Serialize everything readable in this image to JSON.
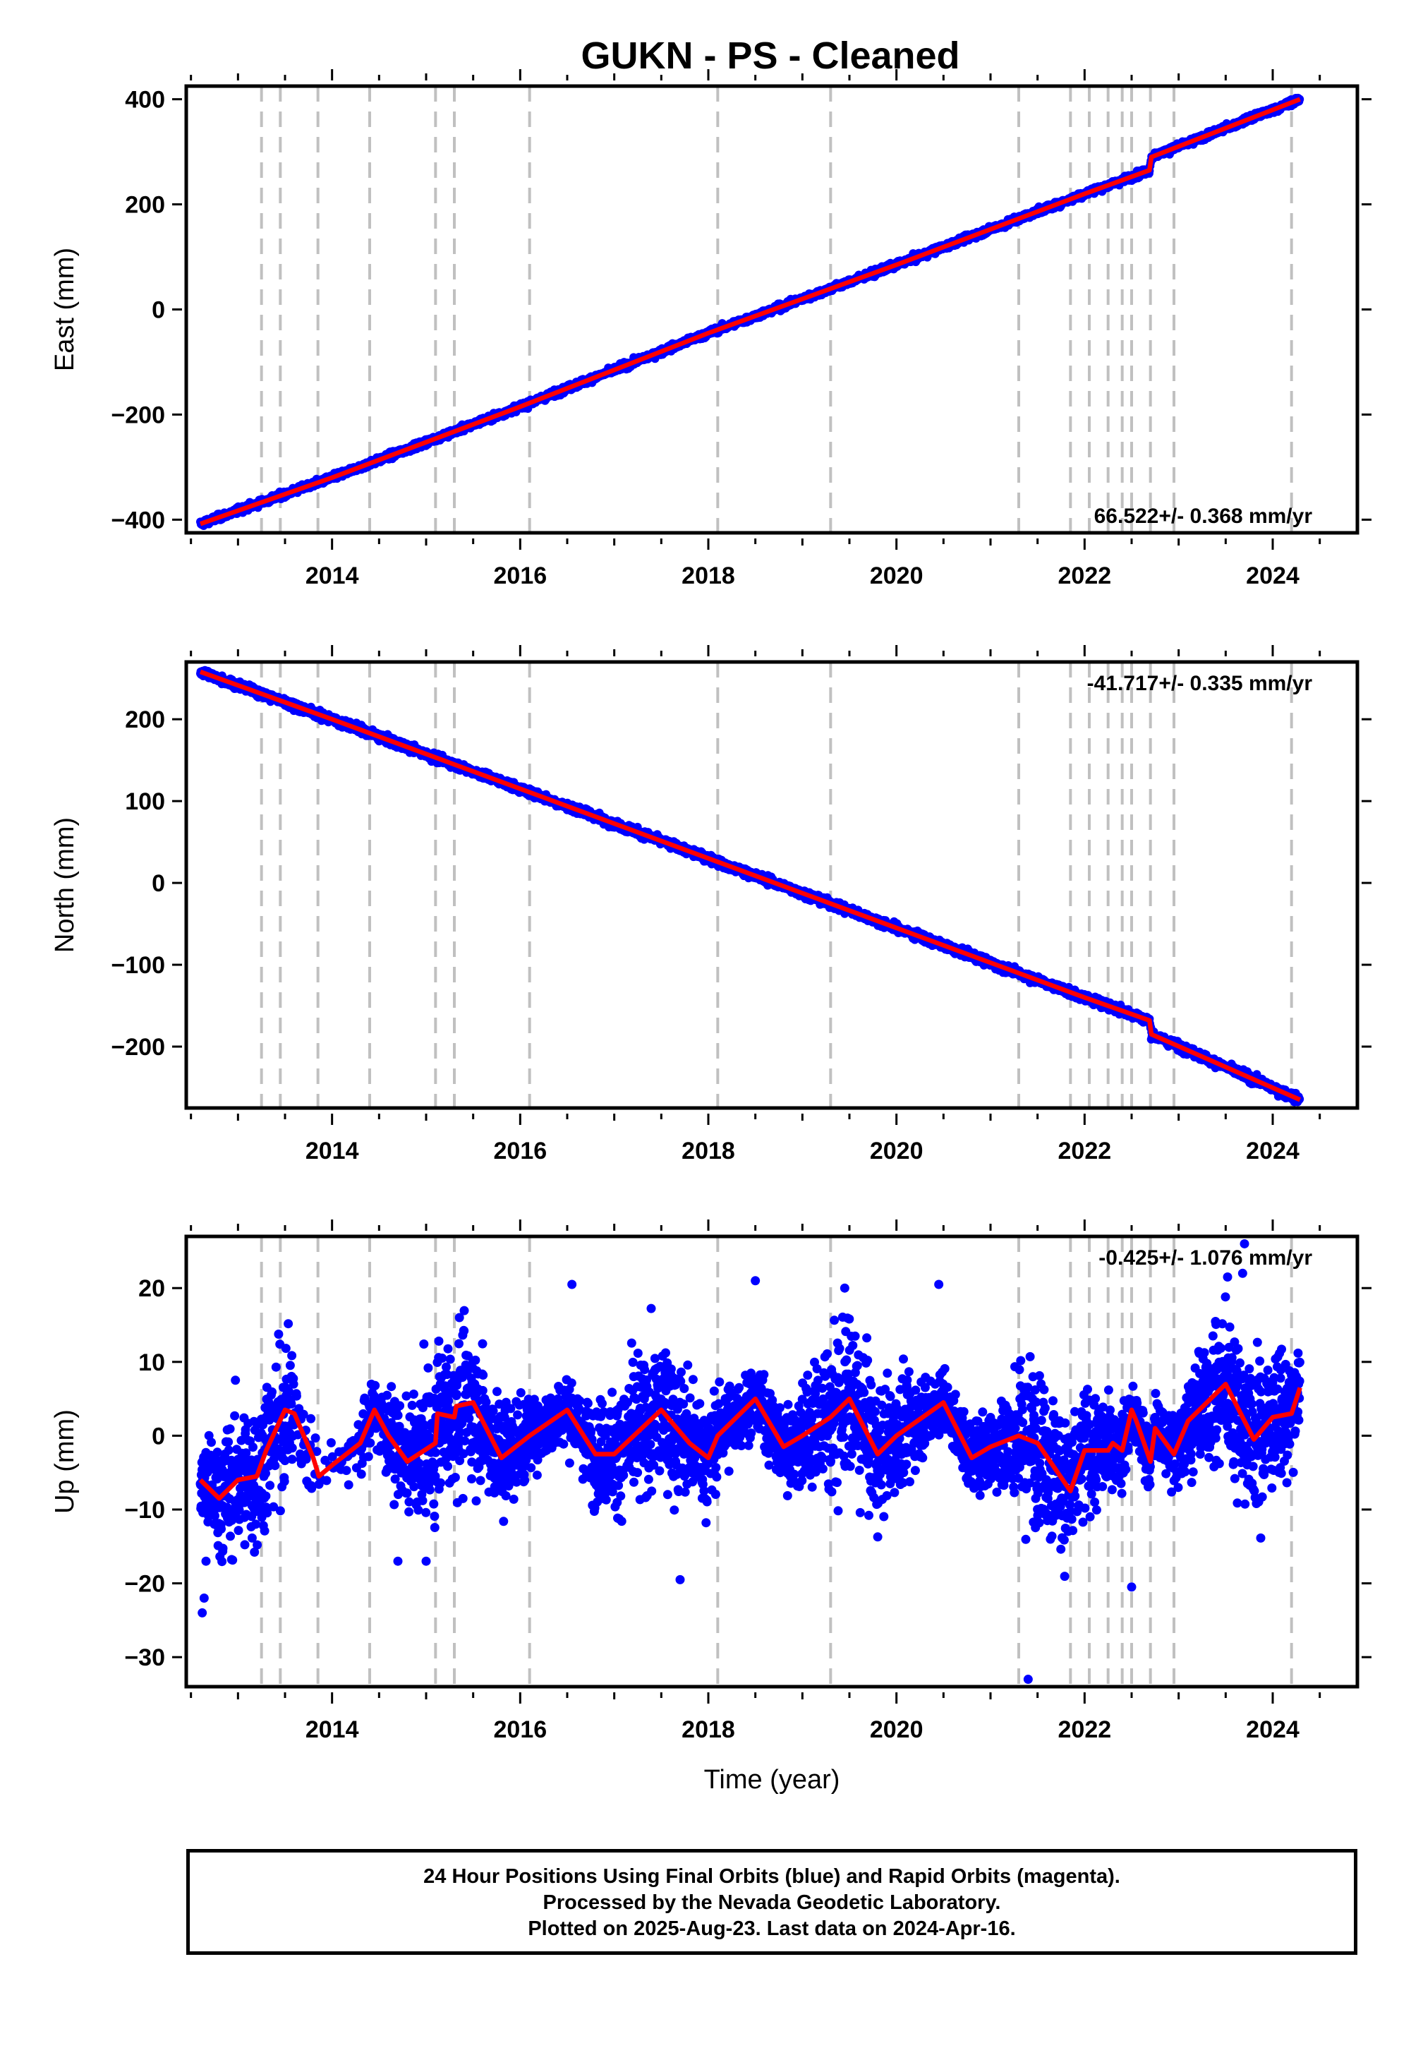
{
  "title": "GUKN  - PS - Cleaned",
  "footer": {
    "line1": "24 Hour Positions Using Final Orbits (blue) and Rapid Orbits (magenta).",
    "line2": "Processed by the Nevada Geodetic Laboratory.",
    "line3": "Plotted on 2025-Aug-23. Last data on 2024-Apr-16."
  },
  "colors": {
    "data": "#0000ff",
    "model": "#ff0000",
    "breaks": "#c0c0c0",
    "frame": "#000000"
  },
  "chart_data": [
    {
      "type": "scatter",
      "ylabel": "East (mm)",
      "xlabel": "",
      "xlim": [
        2012.45,
        2024.9
      ],
      "ylim": [
        -425,
        425
      ],
      "x_ticks": [
        2014,
        2016,
        2018,
        2020,
        2022,
        2024
      ],
      "y_ticks": [
        -400,
        -200,
        0,
        200,
        400
      ],
      "y_tick_labels": [
        "−400",
        "−200",
        "0",
        "200",
        "400"
      ],
      "rate": "66.522+/- 0.368 mm/yr",
      "rate_position": "bottom-right",
      "break_lines": [
        2013.25,
        2013.45,
        2013.85,
        2014.4,
        2015.1,
        2015.3,
        2016.1,
        2018.1,
        2019.3,
        2021.3,
        2021.85,
        2022.05,
        2022.25,
        2022.4,
        2022.5,
        2022.7,
        2022.95,
        2024.2
      ],
      "series": [
        {
          "kind": "points",
          "x_start": 2012.6,
          "x_end": 2024.29,
          "y_at_start": -408,
          "y_at_end": 410,
          "offsets": [
            {
              "x": 2022.7,
              "y": 12
            }
          ],
          "scatter": 3
        },
        {
          "kind": "model",
          "x": [
            2012.6,
            2014.0,
            2016.0,
            2018.0,
            2020.0,
            2022.0,
            2022.69,
            2022.71,
            2024.29
          ],
          "y": [
            -408,
            -320,
            -185,
            -45,
            85,
            220,
            265,
            290,
            400
          ]
        }
      ]
    },
    {
      "type": "scatter",
      "ylabel": "North (mm)",
      "xlabel": "",
      "xlim": [
        2012.45,
        2024.9
      ],
      "ylim": [
        -275,
        270
      ],
      "x_ticks": [
        2014,
        2016,
        2018,
        2020,
        2022,
        2024
      ],
      "y_ticks": [
        -200,
        -100,
        0,
        100,
        200
      ],
      "y_tick_labels": [
        "−200",
        "−100",
        "0",
        "100",
        "200"
      ],
      "rate": "-41.717+/- 0.335 mm/yr",
      "rate_position": "top-right",
      "break_lines": [
        2013.25,
        2013.45,
        2013.85,
        2014.4,
        2015.1,
        2015.3,
        2016.1,
        2018.1,
        2019.3,
        2021.3,
        2021.85,
        2022.05,
        2022.25,
        2022.4,
        2022.5,
        2022.7,
        2022.95,
        2024.2
      ],
      "series": [
        {
          "kind": "points",
          "x_start": 2012.6,
          "x_end": 2024.29,
          "y_at_start": 258,
          "y_at_end": -265,
          "scatter": 2.5
        },
        {
          "kind": "model",
          "x": [
            2012.6,
            2014.0,
            2016.0,
            2018.0,
            2020.0,
            2022.0,
            2022.69,
            2022.71,
            2024.29
          ],
          "y": [
            258,
            200,
            115,
            30,
            -55,
            -140,
            -168,
            -185,
            -265
          ]
        }
      ]
    },
    {
      "type": "scatter",
      "ylabel": "Up (mm)",
      "xlabel": "Time (year)",
      "xlim": [
        2012.45,
        2024.9
      ],
      "ylim": [
        -34,
        27
      ],
      "x_ticks": [
        2014,
        2016,
        2018,
        2020,
        2022,
        2024
      ],
      "y_ticks": [
        -30,
        -20,
        -10,
        0,
        10,
        20
      ],
      "y_tick_labels": [
        "−30",
        "−20",
        "−10",
        "0",
        "10",
        "20"
      ],
      "rate": "-0.425+/- 1.076 mm/yr",
      "rate_position": "top-right",
      "break_lines": [
        2013.25,
        2013.45,
        2013.85,
        2014.4,
        2015.1,
        2015.3,
        2016.1,
        2018.1,
        2019.3,
        2021.3,
        2021.85,
        2022.05,
        2022.25,
        2022.4,
        2022.5,
        2022.7,
        2022.95,
        2024.2
      ],
      "outliers": [
        {
          "x": 2012.62,
          "y": -24
        },
        {
          "x": 2012.64,
          "y": -22
        },
        {
          "x": 2012.66,
          "y": -17
        },
        {
          "x": 2017.7,
          "y": -19.5
        },
        {
          "x": 2021.4,
          "y": -33
        },
        {
          "x": 2022.5,
          "y": -20.5
        },
        {
          "x": 2023.7,
          "y": 26
        },
        {
          "x": 2023.68,
          "y": 22
        },
        {
          "x": 2018.5,
          "y": 21
        },
        {
          "x": 2016.55,
          "y": 20.5
        },
        {
          "x": 2019.45,
          "y": 20
        },
        {
          "x": 2020.45,
          "y": 20.5
        },
        {
          "x": 2023.52,
          "y": 21.5
        },
        {
          "x": 2014.7,
          "y": -17
        },
        {
          "x": 2015.0,
          "y": -17
        }
      ],
      "series": [
        {
          "kind": "points",
          "x_start": 2012.6,
          "x_end": 2024.29,
          "noise": 5,
          "gaps": [
            [
              2013.6,
              2014.3
            ]
          ]
        },
        {
          "kind": "model",
          "x": [
            2012.6,
            2012.8,
            2013.0,
            2013.2,
            2013.3,
            2013.5,
            2013.6,
            2013.8,
            2013.86,
            2014.0,
            2014.3,
            2014.45,
            2014.6,
            2014.8,
            2015.1,
            2015.12,
            2015.3,
            2015.32,
            2015.5,
            2015.8,
            2016.0,
            2016.1,
            2016.5,
            2016.8,
            2017.0,
            2017.5,
            2017.8,
            2018.0,
            2018.1,
            2018.5,
            2018.8,
            2019.0,
            2019.3,
            2019.5,
            2019.8,
            2020.0,
            2020.5,
            2020.8,
            2021.0,
            2021.3,
            2021.5,
            2021.85,
            2022.0,
            2022.25,
            2022.3,
            2022.4,
            2022.5,
            2022.55,
            2022.7,
            2022.75,
            2022.95,
            2023.1,
            2023.5,
            2023.8,
            2024.0,
            2024.2,
            2024.29
          ],
          "y": [
            -6,
            -8.5,
            -6,
            -5.5,
            -2,
            3.5,
            3,
            -3,
            -5.5,
            -4,
            -1,
            3.5,
            0,
            -3.5,
            -1,
            3,
            2.5,
            4,
            4.5,
            -3,
            -1,
            0,
            3.5,
            -2.5,
            -2.5,
            3.5,
            -1,
            -3,
            0,
            5,
            -1.5,
            0,
            2.5,
            5,
            -2.5,
            0,
            4.5,
            -3,
            -1.5,
            0,
            -1,
            -7.5,
            -2,
            -2,
            -1,
            -2,
            3.5,
            2,
            -3.5,
            1,
            -2.5,
            2,
            7,
            -0.5,
            2.5,
            3,
            6.5
          ]
        }
      ]
    }
  ]
}
